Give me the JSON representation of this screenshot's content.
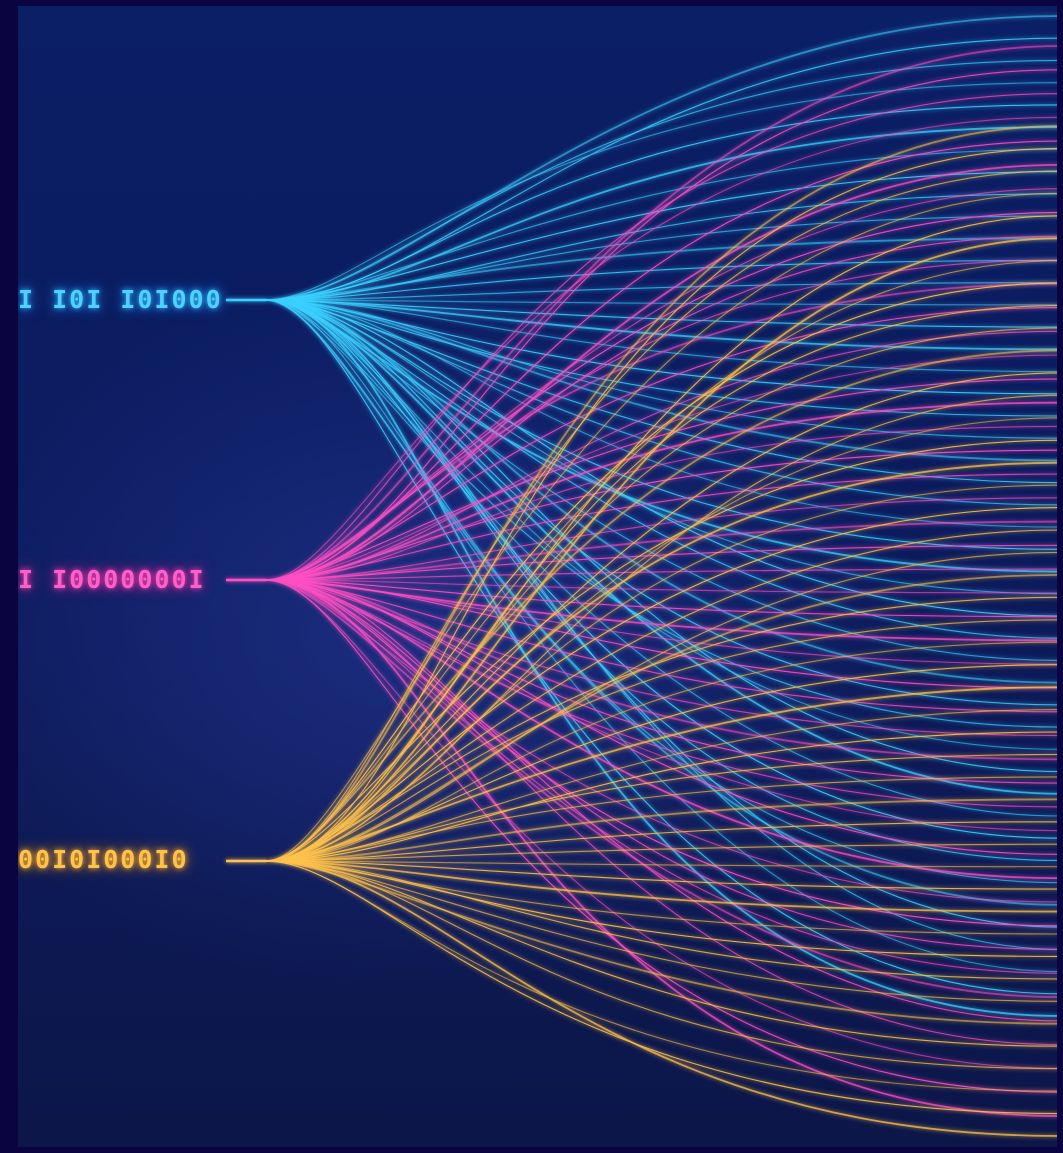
{
  "image": {
    "background_color": "#0a0540",
    "art_background_color": "#0b1b5e"
  },
  "streams": [
    {
      "binary": "I I0I I0I000",
      "color": "#3ad0ff",
      "glow": "#1a8cff",
      "name": "cyan"
    },
    {
      "binary": "I I0000000I",
      "color": "#ff4fc3",
      "glow": "#e0208f",
      "name": "magenta"
    },
    {
      "binary": "00I0I000I0",
      "color": "#ffc24a",
      "glow": "#e08a10",
      "name": "gold"
    }
  ]
}
